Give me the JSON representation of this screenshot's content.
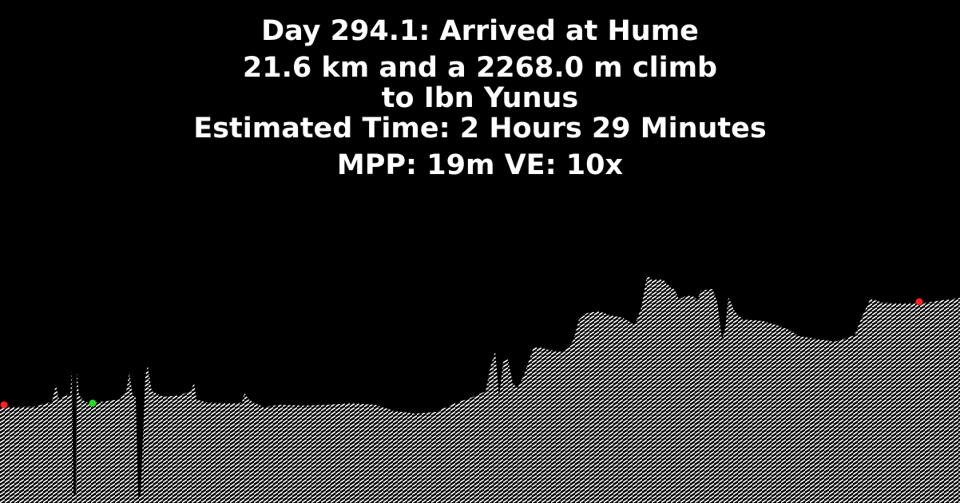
{
  "header": {
    "line1": "Day 294.1: Arrived at Hume",
    "line2": "21.6 km and a 2268.0 m climb",
    "line3": "to Ibn Yunus",
    "line4": "Estimated Time: 2 Hours 29 Minutes",
    "line5": "MPP: 19m VE: 10x"
  },
  "colors": {
    "background": "#000000",
    "text": "#ffffff",
    "terrain_fill": "#ffffff",
    "start_marker": "#ff2020",
    "current_marker": "#22dd22",
    "end_marker": "#ff2020"
  }
}
